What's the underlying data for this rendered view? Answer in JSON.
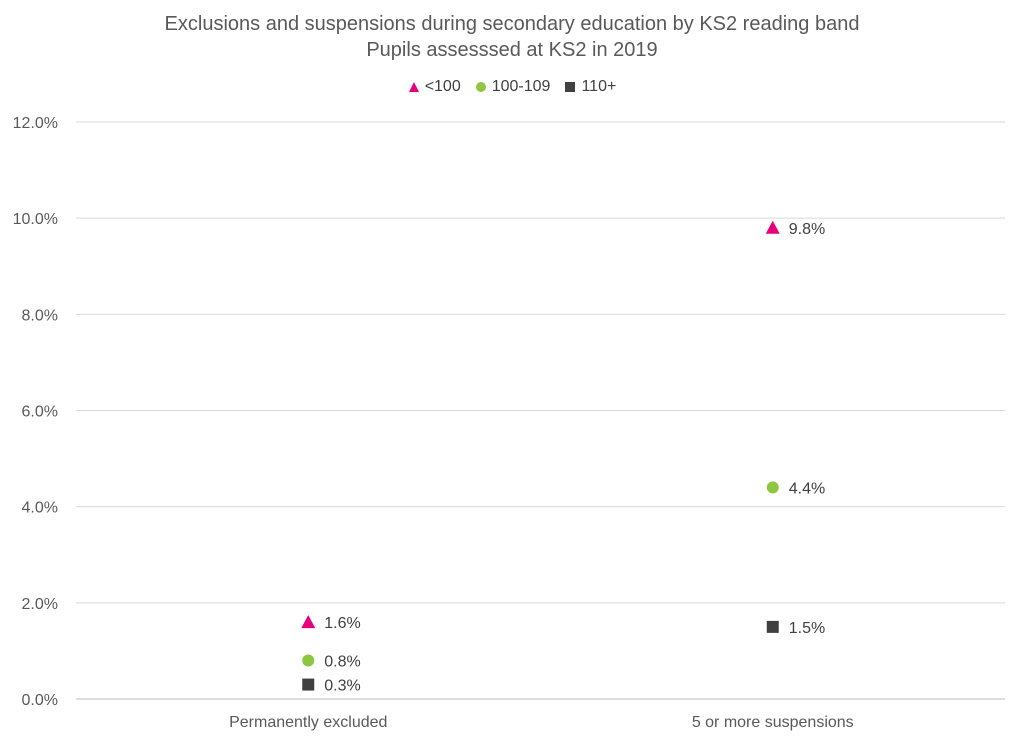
{
  "chart_data": {
    "type": "scatter",
    "title": "Exclusions and suspensions during secondary education by KS2 reading band",
    "subtitle": "Pupils assesssed at KS2 in 2019",
    "categories": [
      "Permanently excluded",
      "5 or more suspensions"
    ],
    "ylim": [
      0,
      12
    ],
    "yticks": [
      "0.0%",
      "2.0%",
      "4.0%",
      "6.0%",
      "8.0%",
      "10.0%",
      "12.0%"
    ],
    "grid": true,
    "legend_position": "top",
    "series": [
      {
        "name": "<100",
        "marker": "triangle",
        "color": "#E6007E",
        "values": [
          1.6,
          9.8
        ],
        "labels": [
          "1.6%",
          "9.8%"
        ]
      },
      {
        "name": "100-109",
        "marker": "circle",
        "color": "#8DC63F",
        "values": [
          0.8,
          4.4
        ],
        "labels": [
          "0.8%",
          "4.4%"
        ]
      },
      {
        "name": "110+",
        "marker": "square",
        "color": "#404040",
        "values": [
          0.3,
          1.5
        ],
        "labels": [
          "0.3%",
          "1.5%"
        ]
      }
    ]
  }
}
